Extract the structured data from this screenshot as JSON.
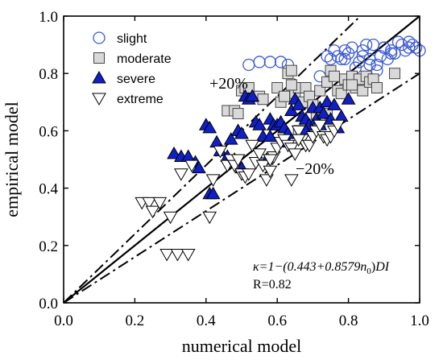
{
  "chart_data": {
    "type": "scatter",
    "title": "",
    "xlabel": "numerical model",
    "ylabel": "empirical model",
    "xlim": [
      0.0,
      1.0
    ],
    "ylim": [
      0.0,
      1.0
    ],
    "xticks": [
      "0.0",
      "0.2",
      "0.4",
      "0.6",
      "0.8",
      "1.0"
    ],
    "yticks": [
      "0.0",
      "0.2",
      "0.4",
      "0.6",
      "0.8",
      "1.0"
    ],
    "grid": false,
    "legend_position": "top-left",
    "reference_lines": [
      {
        "name": "y=x",
        "slope": 1.0,
        "style": "solid"
      },
      {
        "name": "+20%",
        "label": "+20%",
        "slope": 1.2,
        "style": "dash-dot"
      },
      {
        "name": "-20%",
        "label": "−20%",
        "slope": 0.8,
        "style": "dash-dot"
      }
    ],
    "annotations": {
      "equation_prefix": "κ=1−(0.443+0.8579",
      "equation_var": "n",
      "equation_sub": "0",
      "equation_suffix": ")",
      "equation_di": "DI",
      "r_value": "R=0.82"
    },
    "series": [
      {
        "name": "slight",
        "marker": "circle",
        "color": "#3a5ad6",
        "points": [
          [
            0.52,
            0.83
          ],
          [
            0.55,
            0.84
          ],
          [
            0.58,
            0.84
          ],
          [
            0.61,
            0.84
          ],
          [
            0.63,
            0.83
          ],
          [
            0.72,
            0.79
          ],
          [
            0.74,
            0.86
          ],
          [
            0.75,
            0.85
          ],
          [
            0.76,
            0.88
          ],
          [
            0.77,
            0.86
          ],
          [
            0.78,
            0.85
          ],
          [
            0.79,
            0.88
          ],
          [
            0.8,
            0.87
          ],
          [
            0.82,
            0.82
          ],
          [
            0.83,
            0.84
          ],
          [
            0.84,
            0.88
          ],
          [
            0.85,
            0.9
          ],
          [
            0.86,
            0.85
          ],
          [
            0.87,
            0.9
          ],
          [
            0.88,
            0.81
          ],
          [
            0.88,
            0.83
          ],
          [
            0.89,
            0.86
          ],
          [
            0.9,
            0.89
          ],
          [
            0.91,
            0.85
          ],
          [
            0.92,
            0.88
          ],
          [
            0.93,
            0.87
          ],
          [
            0.94,
            0.91
          ],
          [
            0.95,
            0.9
          ],
          [
            0.96,
            0.88
          ],
          [
            0.97,
            0.89
          ],
          [
            0.98,
            0.9
          ],
          [
            0.99,
            0.89
          ],
          [
            1.0,
            0.88
          ],
          [
            0.9,
            0.89
          ],
          [
            0.81,
            0.89
          ],
          [
            0.86,
            0.83
          ],
          [
            0.84,
            0.86
          ],
          [
            0.79,
            0.85
          ],
          [
            0.92,
            0.87
          ],
          [
            0.97,
            0.91
          ]
        ]
      },
      {
        "name": "moderate",
        "marker": "square",
        "color": "#d9d9d9",
        "points": [
          [
            0.46,
            0.67
          ],
          [
            0.48,
            0.67
          ],
          [
            0.49,
            0.66
          ],
          [
            0.5,
            0.74
          ],
          [
            0.51,
            0.75
          ],
          [
            0.52,
            0.75
          ],
          [
            0.55,
            0.72
          ],
          [
            0.56,
            0.71
          ],
          [
            0.6,
            0.75
          ],
          [
            0.61,
            0.7
          ],
          [
            0.62,
            0.72
          ],
          [
            0.63,
            0.8
          ],
          [
            0.64,
            0.81
          ],
          [
            0.65,
            0.73
          ],
          [
            0.66,
            0.75
          ],
          [
            0.67,
            0.7
          ],
          [
            0.68,
            0.75
          ],
          [
            0.69,
            0.72
          ],
          [
            0.7,
            0.69
          ],
          [
            0.71,
            0.66
          ],
          [
            0.72,
            0.74
          ],
          [
            0.73,
            0.65
          ],
          [
            0.74,
            0.77
          ],
          [
            0.75,
            0.81
          ],
          [
            0.76,
            0.79
          ],
          [
            0.77,
            0.74
          ],
          [
            0.78,
            0.73
          ],
          [
            0.79,
            0.78
          ],
          [
            0.8,
            0.76
          ],
          [
            0.81,
            0.79
          ],
          [
            0.82,
            0.75
          ],
          [
            0.83,
            0.78
          ],
          [
            0.84,
            0.74
          ],
          [
            0.85,
            0.79
          ],
          [
            0.86,
            0.77
          ],
          [
            0.87,
            0.78
          ],
          [
            0.88,
            0.75
          ],
          [
            0.93,
            0.8
          ],
          [
            0.68,
            0.61
          ],
          [
            0.66,
            0.6
          ],
          [
            0.7,
            0.62
          ],
          [
            0.74,
            0.66
          ],
          [
            0.72,
            0.63
          ],
          [
            0.81,
            0.76
          ],
          [
            0.64,
            0.76
          ]
        ]
      },
      {
        "name": "severe",
        "marker": "triangle-up",
        "color": "#1020c8",
        "points": [
          [
            0.31,
            0.52
          ],
          [
            0.33,
            0.51
          ],
          [
            0.35,
            0.51
          ],
          [
            0.37,
            0.49
          ],
          [
            0.38,
            0.47
          ],
          [
            0.4,
            0.62
          ],
          [
            0.41,
            0.61
          ],
          [
            0.41,
            0.38
          ],
          [
            0.42,
            0.38
          ],
          [
            0.43,
            0.56
          ],
          [
            0.44,
            0.53
          ],
          [
            0.46,
            0.51
          ],
          [
            0.47,
            0.57
          ],
          [
            0.48,
            0.5
          ],
          [
            0.49,
            0.6
          ],
          [
            0.5,
            0.59
          ],
          [
            0.51,
            0.72
          ],
          [
            0.52,
            0.71
          ],
          [
            0.53,
            0.72
          ],
          [
            0.54,
            0.63
          ],
          [
            0.55,
            0.62
          ],
          [
            0.56,
            0.58
          ],
          [
            0.57,
            0.5
          ],
          [
            0.58,
            0.64
          ],
          [
            0.59,
            0.62
          ],
          [
            0.6,
            0.62
          ],
          [
            0.61,
            0.63
          ],
          [
            0.62,
            0.61
          ],
          [
            0.63,
            0.59
          ],
          [
            0.64,
            0.67
          ],
          [
            0.65,
            0.71
          ],
          [
            0.66,
            0.69
          ],
          [
            0.67,
            0.65
          ],
          [
            0.68,
            0.64
          ],
          [
            0.69,
            0.62
          ],
          [
            0.7,
            0.68
          ],
          [
            0.71,
            0.64
          ],
          [
            0.72,
            0.68
          ],
          [
            0.73,
            0.66
          ],
          [
            0.74,
            0.7
          ],
          [
            0.75,
            0.64
          ],
          [
            0.76,
            0.69
          ],
          [
            0.77,
            0.61
          ],
          [
            0.78,
            0.65
          ],
          [
            0.8,
            0.71
          ],
          [
            0.72,
            0.62
          ],
          [
            0.68,
            0.6
          ],
          [
            0.63,
            0.56
          ],
          [
            0.58,
            0.58
          ],
          [
            0.5,
            0.47
          ]
        ]
      },
      {
        "name": "extreme",
        "marker": "triangle-down",
        "color": "#ffffff",
        "points": [
          [
            0.22,
            0.35
          ],
          [
            0.24,
            0.35
          ],
          [
            0.25,
            0.32
          ],
          [
            0.27,
            0.35
          ],
          [
            0.29,
            0.17
          ],
          [
            0.3,
            0.3
          ],
          [
            0.32,
            0.17
          ],
          [
            0.33,
            0.45
          ],
          [
            0.35,
            0.17
          ],
          [
            0.36,
            0.48
          ],
          [
            0.41,
            0.3
          ],
          [
            0.42,
            0.43
          ],
          [
            0.44,
            0.53
          ],
          [
            0.46,
            0.48
          ],
          [
            0.47,
            0.5
          ],
          [
            0.48,
            0.48
          ],
          [
            0.49,
            0.5
          ],
          [
            0.5,
            0.45
          ],
          [
            0.51,
            0.44
          ],
          [
            0.52,
            0.45
          ],
          [
            0.53,
            0.55
          ],
          [
            0.54,
            0.49
          ],
          [
            0.55,
            0.52
          ],
          [
            0.56,
            0.48
          ],
          [
            0.57,
            0.43
          ],
          [
            0.58,
            0.46
          ],
          [
            0.59,
            0.51
          ],
          [
            0.6,
            0.54
          ],
          [
            0.61,
            0.56
          ],
          [
            0.62,
            0.57
          ],
          [
            0.63,
            0.55
          ],
          [
            0.64,
            0.54
          ],
          [
            0.65,
            0.52
          ],
          [
            0.66,
            0.6
          ],
          [
            0.67,
            0.57
          ],
          [
            0.68,
            0.55
          ],
          [
            0.69,
            0.55
          ],
          [
            0.7,
            0.58
          ],
          [
            0.71,
            0.6
          ],
          [
            0.72,
            0.62
          ],
          [
            0.73,
            0.58
          ],
          [
            0.74,
            0.57
          ],
          [
            0.75,
            0.58
          ],
          [
            0.76,
            0.6
          ],
          [
            0.77,
            0.62
          ],
          [
            0.64,
            0.43
          ],
          [
            0.58,
            0.5
          ],
          [
            0.66,
            0.57
          ]
        ]
      }
    ]
  }
}
